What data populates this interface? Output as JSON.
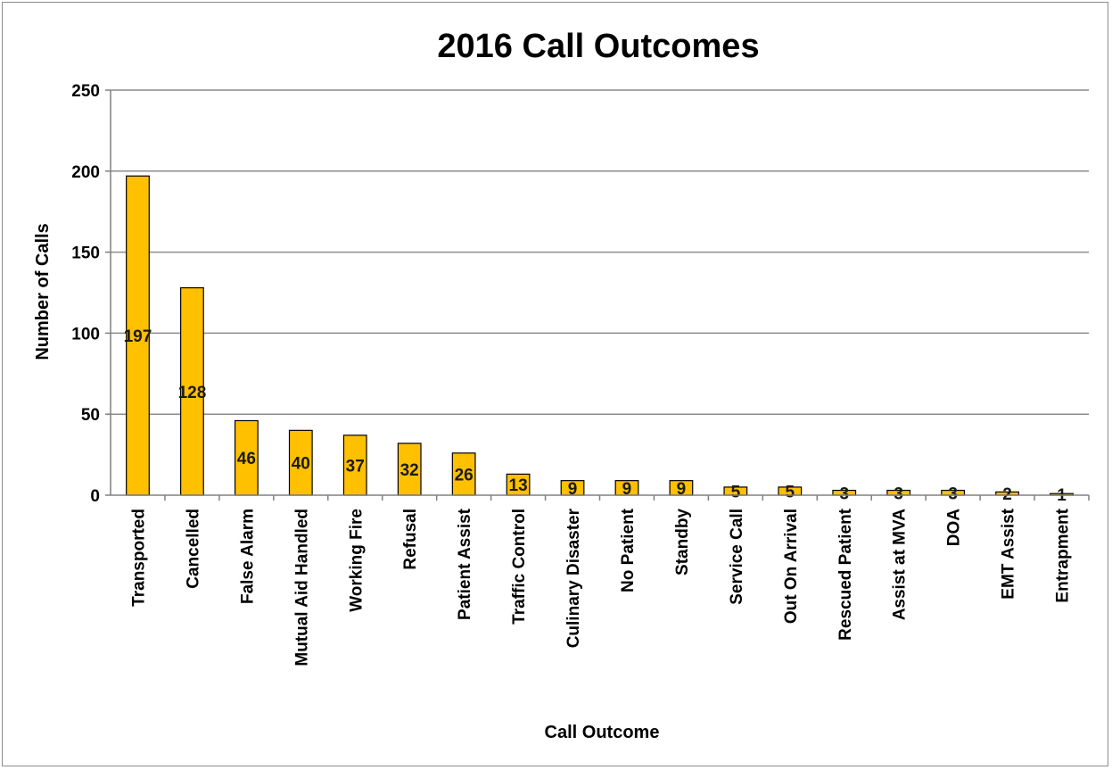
{
  "chart_data": {
    "type": "bar",
    "title": "2016 Call Outcomes",
    "xlabel": "Call Outcome",
    "ylabel": "Number of Calls",
    "ylim": [
      0,
      250
    ],
    "yticks": [
      0,
      50,
      100,
      150,
      200,
      250
    ],
    "grid": true,
    "legend": "none",
    "bar_color": "#FFC000",
    "bar_edge_color": "#000000",
    "categories": [
      "Transported",
      "Cancelled",
      "False Alarm",
      "Mutual Aid Handled",
      "Working Fire",
      "Refusal",
      "Patient Assist",
      "Traffic Control",
      "Culinary Disaster",
      "No Patient",
      "Standby",
      "Service Call",
      "Out On Arrival",
      "Rescued Patient",
      "Assist at MVA",
      "DOA",
      "EMT Assist",
      "Entrapment"
    ],
    "values": [
      197,
      128,
      46,
      40,
      37,
      32,
      26,
      13,
      9,
      9,
      9,
      5,
      5,
      3,
      3,
      3,
      2,
      1
    ]
  }
}
